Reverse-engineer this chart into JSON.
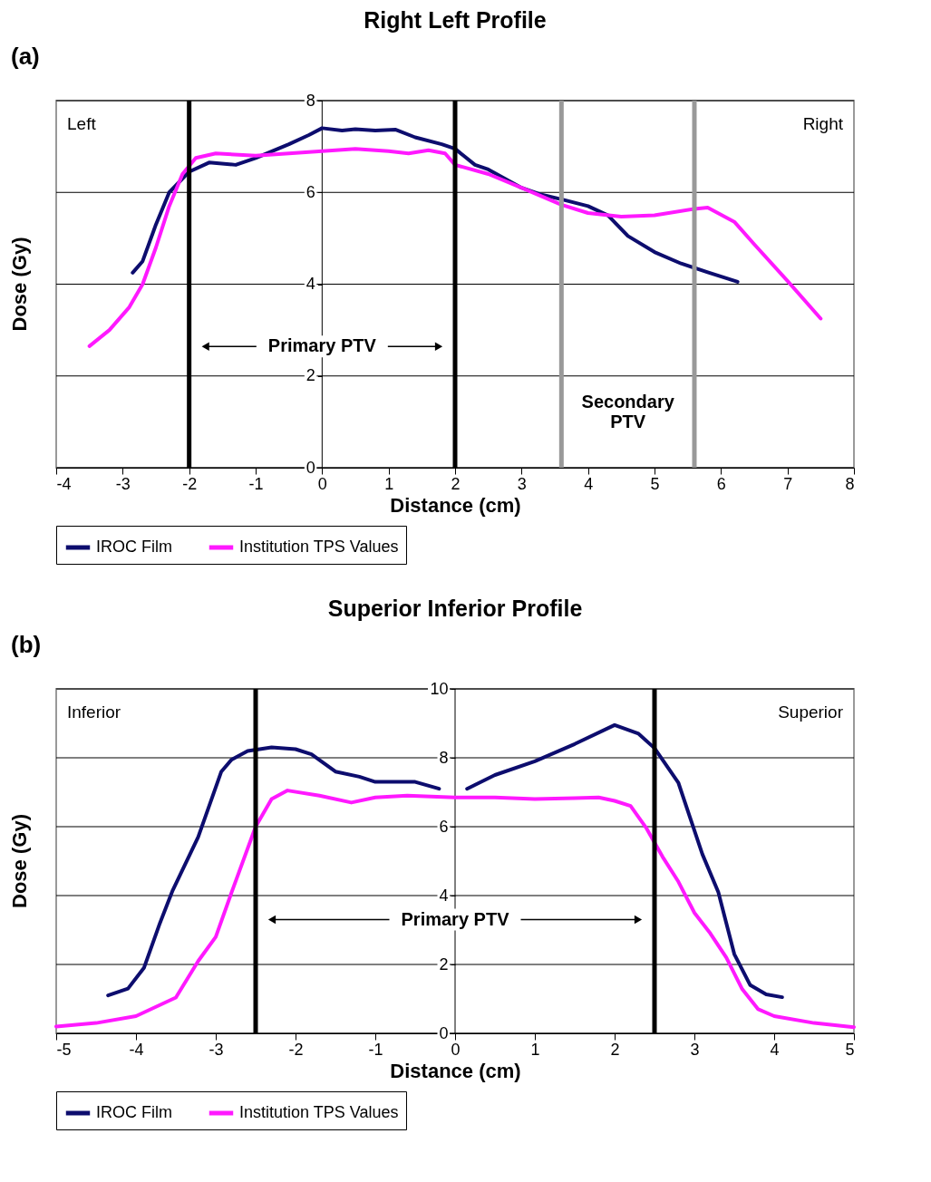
{
  "chart_data": [
    {
      "type": "line",
      "title": "Right Left Profile",
      "xlabel": "Distance (cm)",
      "ylabel": "Dose (Gy)",
      "xlim": [
        -4,
        8
      ],
      "xticks": [
        -4,
        -3,
        -2,
        -1,
        0,
        1,
        2,
        3,
        4,
        5,
        6,
        7,
        8
      ],
      "ylim": [
        0,
        8
      ],
      "yticks": [
        0,
        2,
        4,
        6,
        8
      ],
      "grid": "y",
      "legend": "bottom",
      "series": [
        {
          "name": "IROC Film",
          "color": "#0d0d6e",
          "x": [
            -2.85,
            -2.7,
            -2.5,
            -2.3,
            -2.0,
            -1.7,
            -1.3,
            -1.0,
            -0.5,
            -0.2,
            0,
            0.3,
            0.5,
            0.8,
            1.1,
            1.4,
            1.8,
            2.0,
            2.3,
            2.5,
            3.0,
            3.3,
            3.6,
            4.0,
            4.3,
            4.6,
            5.0,
            5.4,
            5.8,
            6.25
          ],
          "values": [
            4.25,
            4.5,
            5.3,
            6.0,
            6.45,
            6.65,
            6.6,
            6.75,
            7.05,
            7.25,
            7.4,
            7.35,
            7.38,
            7.35,
            7.37,
            7.2,
            7.05,
            6.95,
            6.6,
            6.5,
            6.1,
            5.95,
            5.85,
            5.7,
            5.5,
            5.05,
            4.7,
            4.45,
            4.26,
            4.05
          ]
        },
        {
          "name": "Institution TPS Values",
          "color": "#ff19ff",
          "x": [
            -3.5,
            -3.2,
            -2.9,
            -2.7,
            -2.5,
            -2.3,
            -2.1,
            -1.9,
            -1.6,
            -1.0,
            0,
            0.5,
            1.0,
            1.3,
            1.6,
            1.85,
            2.0,
            2.5,
            3.0,
            3.6,
            4.0,
            4.5,
            5.0,
            5.6,
            5.8,
            6.2,
            6.5,
            7.0,
            7.5
          ],
          "values": [
            2.65,
            3.0,
            3.5,
            4.0,
            4.8,
            5.7,
            6.4,
            6.75,
            6.85,
            6.8,
            6.9,
            6.95,
            6.9,
            6.85,
            6.92,
            6.85,
            6.6,
            6.4,
            6.1,
            5.73,
            5.55,
            5.47,
            5.5,
            5.64,
            5.67,
            5.36,
            4.87,
            4.07,
            3.25
          ]
        }
      ],
      "ref_lines": [
        {
          "axis": "x",
          "value": -2,
          "color": "#000000"
        },
        {
          "axis": "x",
          "value": 2,
          "color": "#000000"
        },
        {
          "axis": "x",
          "value": 3.6,
          "color": "#999999"
        },
        {
          "axis": "x",
          "value": 5.6,
          "color": "#999999"
        }
      ],
      "annotations": [
        "(a)",
        "Left",
        "Right",
        "Primary PTV",
        "Secondary\nPTV"
      ]
    },
    {
      "type": "line",
      "title": "Superior Inferior Profile",
      "xlabel": "Distance (cm)",
      "ylabel": "Dose (Gy)",
      "xlim": [
        -5,
        5
      ],
      "xticks": [
        -5,
        -4,
        -3,
        -2,
        -1,
        0,
        1,
        2,
        3,
        4,
        5
      ],
      "ylim": [
        0,
        10
      ],
      "yticks": [
        0,
        2,
        4,
        6,
        8,
        10
      ],
      "grid": "y",
      "legend": "bottom",
      "series": [
        {
          "name": "IROC Film",
          "color": "#0d0d6e",
          "x": [
            -4.35,
            -4.1,
            -3.9,
            -3.7,
            -3.54,
            -3.22,
            -2.93,
            -2.8,
            -2.6,
            -2.3,
            -2.0,
            -1.8,
            -1.5,
            -1.2,
            -1.0,
            -0.7,
            -0.5,
            -0.2,
            null,
            0.15,
            0.5,
            1.0,
            1.5,
            2.0,
            2.3,
            2.5,
            2.8,
            3.1,
            3.3,
            3.5,
            3.7,
            3.9,
            4.1
          ],
          "values": [
            1.1,
            1.3,
            1.9,
            3.2,
            4.15,
            5.7,
            7.6,
            7.95,
            8.2,
            8.3,
            8.25,
            8.1,
            7.6,
            7.45,
            7.3,
            7.3,
            7.3,
            7.1,
            null,
            7.1,
            7.5,
            7.9,
            8.4,
            8.95,
            8.7,
            8.28,
            7.27,
            5.2,
            4.1,
            2.3,
            1.4,
            1.13,
            1.05
          ]
        },
        {
          "name": "Institution TPS Values",
          "color": "#ff19ff",
          "x": [
            -5,
            -4.5,
            -4.0,
            -3.5,
            -3.22,
            -3.0,
            -2.8,
            -2.5,
            -2.3,
            -2.1,
            -1.7,
            -1.3,
            -1.0,
            -0.6,
            0,
            0.5,
            1.0,
            1.5,
            1.8,
            2.0,
            2.2,
            2.4,
            2.6,
            2.8,
            3.0,
            3.2,
            3.4,
            3.6,
            3.8,
            4.0,
            4.5,
            5.0
          ],
          "values": [
            0.2,
            0.3,
            0.5,
            1.04,
            2.1,
            2.8,
            4.1,
            6.0,
            6.8,
            7.05,
            6.9,
            6.7,
            6.85,
            6.9,
            6.85,
            6.85,
            6.8,
            6.83,
            6.85,
            6.75,
            6.6,
            5.95,
            5.13,
            4.4,
            3.5,
            2.9,
            2.2,
            1.28,
            0.7,
            0.5,
            0.3,
            0.18
          ]
        }
      ],
      "ref_lines": [
        {
          "axis": "x",
          "value": -2.5,
          "color": "#000000"
        },
        {
          "axis": "x",
          "value": 2.5,
          "color": "#000000"
        }
      ],
      "annotations": [
        "(b)",
        "Inferior",
        "Superior",
        "Primary PTV"
      ]
    }
  ]
}
